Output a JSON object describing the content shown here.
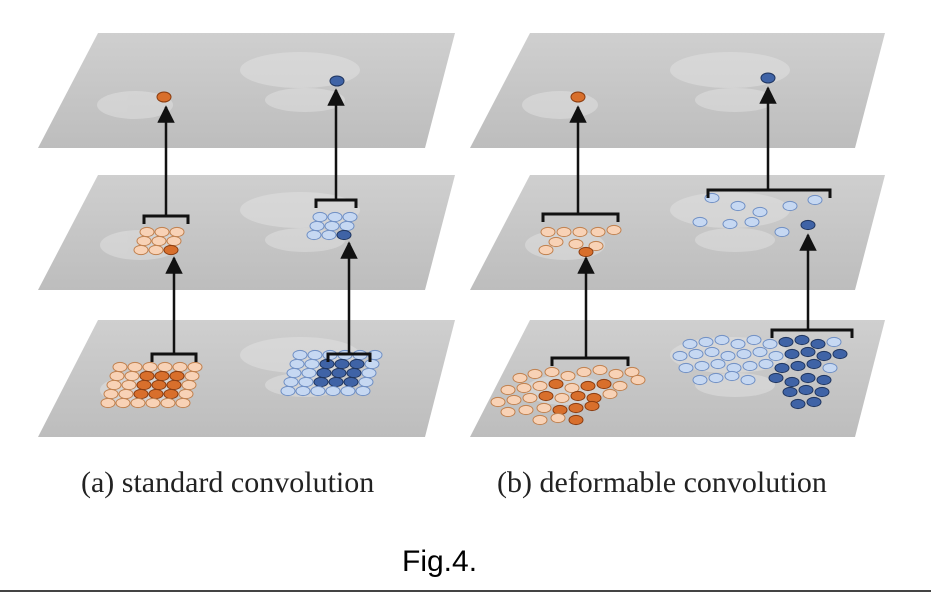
{
  "captions": {
    "standard": "(a) standard convolution",
    "deformable": "(b) deformable convolution"
  },
  "figure_label": "Fig.4.",
  "colors": {
    "plane_fill": "#c4c4c4",
    "orange_light": "#f8d2b6",
    "orange_dark": "#d86f2c",
    "blue_light": "#c6d8f2",
    "blue_dark": "#3f63a6",
    "arrow": "#111111"
  }
}
